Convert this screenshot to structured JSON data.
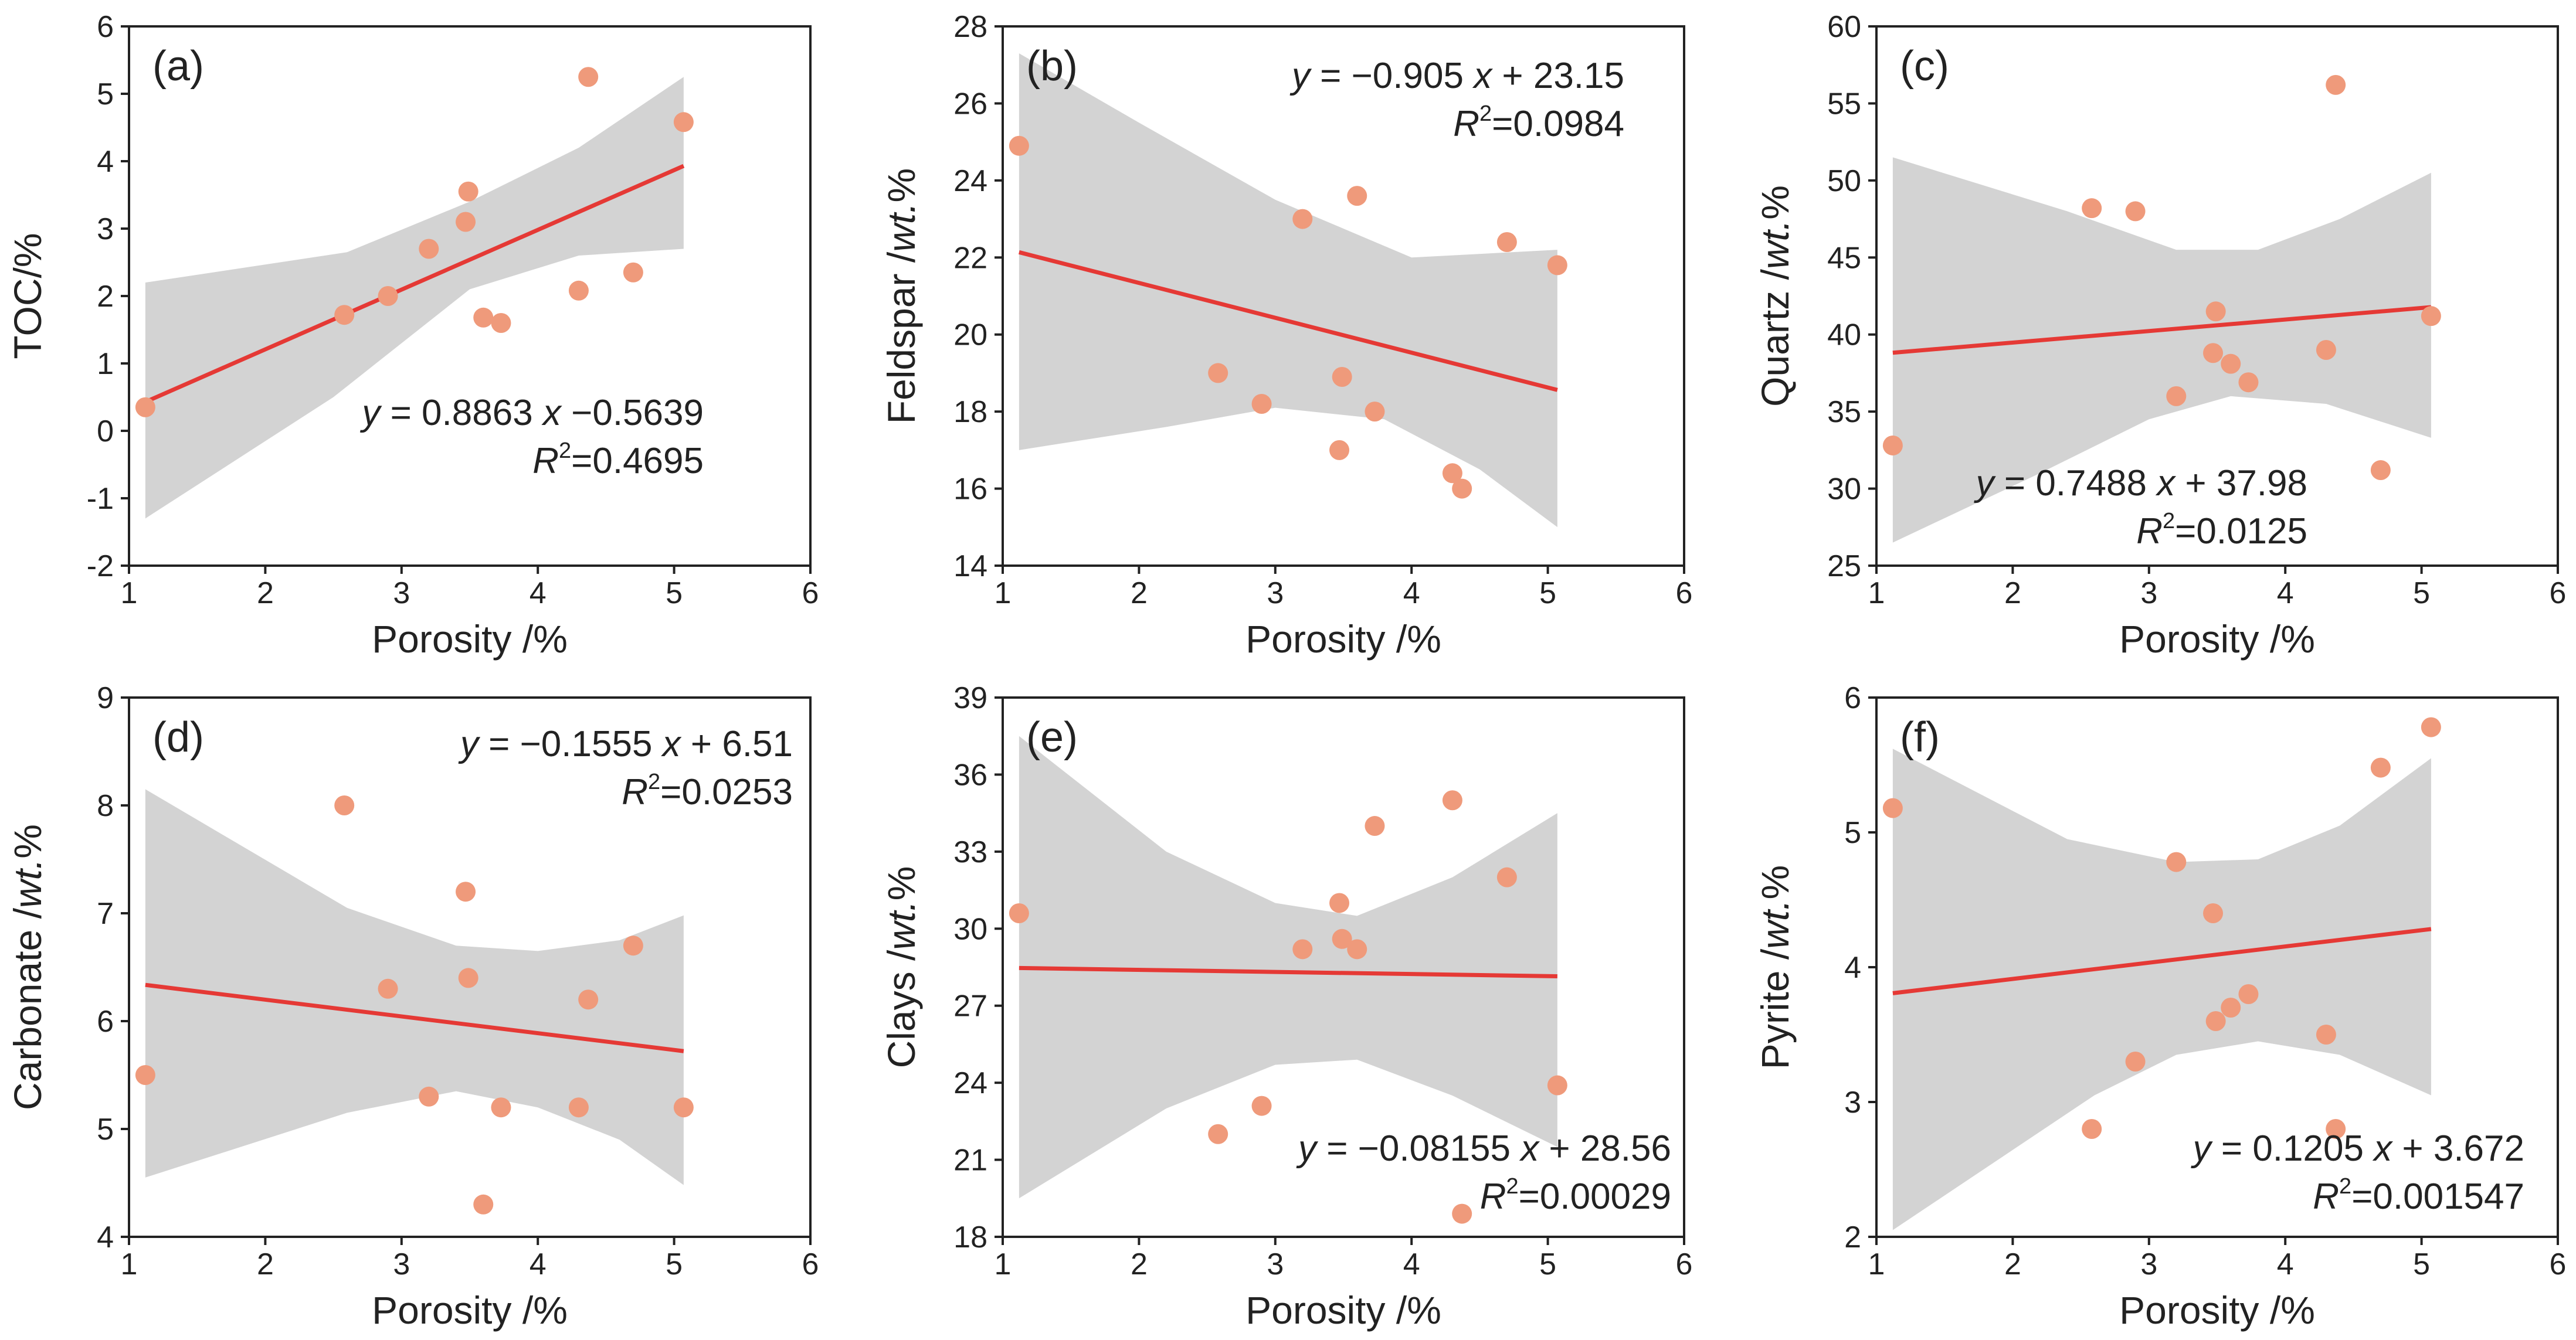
{
  "colors": {
    "point": "#ef9a7b",
    "fit_line": "#e53935",
    "confidence_band": "#d3d3d3",
    "axis": "#222222",
    "background": "#ffffff"
  },
  "chart_data": [
    {
      "type": "scatter",
      "panel_label": "(a)",
      "xlabel": "Porosity /%",
      "ylabel": "TOC/%",
      "xlim": [
        1,
        6
      ],
      "ylim": [
        -2,
        6
      ],
      "xticks": [
        1,
        2,
        3,
        4,
        5,
        6
      ],
      "yticks": [
        -2,
        -1,
        0,
        1,
        2,
        3,
        4,
        5,
        6
      ],
      "points": [
        [
          1.12,
          0.35
        ],
        [
          2.58,
          1.72
        ],
        [
          2.9,
          2.0
        ],
        [
          3.2,
          2.7
        ],
        [
          3.47,
          3.1
        ],
        [
          3.49,
          3.55
        ],
        [
          3.6,
          1.68
        ],
        [
          3.73,
          1.6
        ],
        [
          4.3,
          2.08
        ],
        [
          4.37,
          5.25
        ],
        [
          4.7,
          2.35
        ],
        [
          5.07,
          4.58
        ]
      ],
      "fit": {
        "slope": 0.8863,
        "intercept": -0.5639
      },
      "band_upper": [
        [
          1.12,
          2.2
        ],
        [
          2.6,
          2.65
        ],
        [
          3.5,
          3.4
        ],
        [
          4.3,
          4.2
        ],
        [
          5.07,
          5.25
        ]
      ],
      "band_lower": [
        [
          1.12,
          -1.3
        ],
        [
          2.5,
          0.5
        ],
        [
          3.5,
          2.1
        ],
        [
          4.3,
          2.6
        ],
        [
          5.07,
          2.7
        ]
      ],
      "equation": {
        "pre": "y",
        "mid": " = 0.8863 ",
        "var": "x",
        "post": " −0.5639"
      },
      "r_squared": {
        "symbol": "R",
        "sup": "2",
        "value": "=0.4695"
      }
    },
    {
      "type": "scatter",
      "panel_label": "(b)",
      "xlabel": "Porosity /%",
      "ylabel": "Feldspar /wt.%",
      "xlim": [
        1,
        6
      ],
      "ylim": [
        14,
        28
      ],
      "xticks": [
        1,
        2,
        3,
        4,
        5,
        6
      ],
      "yticks": [
        14,
        16,
        18,
        20,
        22,
        24,
        26,
        28
      ],
      "points": [
        [
          1.12,
          24.9
        ],
        [
          2.58,
          19.0
        ],
        [
          2.9,
          18.2
        ],
        [
          3.2,
          23.0
        ],
        [
          3.47,
          17.0
        ],
        [
          3.49,
          18.9
        ],
        [
          3.6,
          23.6
        ],
        [
          3.73,
          18.0
        ],
        [
          4.3,
          16.4
        ],
        [
          4.37,
          16.0
        ],
        [
          4.7,
          22.4
        ],
        [
          5.07,
          21.8
        ]
      ],
      "fit": {
        "slope": -0.905,
        "intercept": 23.15
      },
      "band_upper": [
        [
          1.12,
          27.3
        ],
        [
          2.0,
          25.5
        ],
        [
          3.0,
          23.5
        ],
        [
          4.0,
          22.0
        ],
        [
          5.07,
          22.2
        ]
      ],
      "band_lower": [
        [
          1.12,
          17.0
        ],
        [
          2.2,
          17.6
        ],
        [
          3.0,
          18.1
        ],
        [
          3.8,
          17.8
        ],
        [
          4.5,
          16.5
        ],
        [
          5.07,
          15.0
        ]
      ],
      "equation": {
        "pre": "y",
        "mid": " = −0.905 ",
        "var": "x",
        "post": " + 23.15"
      },
      "r_squared": {
        "symbol": "R",
        "sup": "2",
        "value": "=0.0984"
      }
    },
    {
      "type": "scatter",
      "panel_label": "(c)",
      "xlabel": "Porosity /%",
      "ylabel": "Quartz /wt.%",
      "xlim": [
        1,
        6
      ],
      "ylim": [
        25,
        60
      ],
      "xticks": [
        1,
        2,
        3,
        4,
        5,
        6
      ],
      "yticks": [
        25,
        30,
        35,
        40,
        45,
        50,
        55,
        60
      ],
      "points": [
        [
          1.12,
          32.8
        ],
        [
          2.58,
          48.2
        ],
        [
          2.9,
          48.0
        ],
        [
          3.2,
          36.0
        ],
        [
          3.47,
          38.8
        ],
        [
          3.49,
          41.5
        ],
        [
          3.6,
          38.1
        ],
        [
          3.73,
          36.9
        ],
        [
          4.3,
          39.0
        ],
        [
          4.37,
          56.2
        ],
        [
          4.7,
          31.2
        ],
        [
          5.07,
          41.2
        ]
      ],
      "fit": {
        "slope": 0.7488,
        "intercept": 37.98
      },
      "band_upper": [
        [
          1.12,
          51.5
        ],
        [
          2.4,
          48.0
        ],
        [
          3.2,
          45.5
        ],
        [
          3.8,
          45.5
        ],
        [
          4.4,
          47.5
        ],
        [
          5.07,
          50.5
        ]
      ],
      "band_lower": [
        [
          1.12,
          26.5
        ],
        [
          2.2,
          31.0
        ],
        [
          3.0,
          34.5
        ],
        [
          3.6,
          36.0
        ],
        [
          4.3,
          35.5
        ],
        [
          5.07,
          33.3
        ]
      ],
      "equation": {
        "pre": "y",
        "mid": " = 0.7488 ",
        "var": "x",
        "post": " + 37.98"
      },
      "r_squared": {
        "symbol": "R",
        "sup": "2",
        "value": "=0.0125"
      }
    },
    {
      "type": "scatter",
      "panel_label": "(d)",
      "xlabel": "Porosity /%",
      "ylabel": "Carbonate /wt.%",
      "xlim": [
        1,
        6
      ],
      "ylim": [
        4,
        9
      ],
      "xticks": [
        1,
        2,
        3,
        4,
        5,
        6
      ],
      "yticks": [
        4,
        5,
        6,
        7,
        8,
        9
      ],
      "points": [
        [
          1.12,
          5.5
        ],
        [
          2.58,
          8.0
        ],
        [
          2.9,
          6.3
        ],
        [
          3.2,
          5.3
        ],
        [
          3.47,
          7.2
        ],
        [
          3.49,
          6.4
        ],
        [
          3.6,
          4.3
        ],
        [
          3.73,
          5.2
        ],
        [
          4.3,
          5.2
        ],
        [
          4.37,
          6.2
        ],
        [
          4.7,
          6.7
        ],
        [
          5.07,
          5.2
        ]
      ],
      "fit": {
        "slope": -0.1555,
        "intercept": 6.51
      },
      "band_upper": [
        [
          1.12,
          8.15
        ],
        [
          2.6,
          7.05
        ],
        [
          3.4,
          6.7
        ],
        [
          4.0,
          6.65
        ],
        [
          4.6,
          6.75
        ],
        [
          5.07,
          6.98
        ]
      ],
      "band_lower": [
        [
          1.12,
          4.55
        ],
        [
          2.6,
          5.15
        ],
        [
          3.4,
          5.35
        ],
        [
          4.0,
          5.2
        ],
        [
          4.6,
          4.9
        ],
        [
          5.07,
          4.48
        ]
      ],
      "equation": {
        "pre": "y",
        "mid": " = −0.1555 ",
        "var": "x",
        "post": " + 6.51"
      },
      "r_squared": {
        "symbol": "R",
        "sup": "2",
        "value": "=0.0253"
      }
    },
    {
      "type": "scatter",
      "panel_label": "(e)",
      "xlabel": "Porosity /%",
      "ylabel": "Clays /wt.%",
      "xlim": [
        1,
        6
      ],
      "ylim": [
        18,
        39
      ],
      "xticks": [
        1,
        2,
        3,
        4,
        5,
        6
      ],
      "yticks": [
        18,
        21,
        24,
        27,
        30,
        33,
        36,
        39
      ],
      "points": [
        [
          1.12,
          30.6
        ],
        [
          2.58,
          22.0
        ],
        [
          2.9,
          23.1
        ],
        [
          3.2,
          29.2
        ],
        [
          3.47,
          31.0
        ],
        [
          3.49,
          29.6
        ],
        [
          3.6,
          29.2
        ],
        [
          3.73,
          34.0
        ],
        [
          4.3,
          35.0
        ],
        [
          4.37,
          18.9
        ],
        [
          4.7,
          32.0
        ],
        [
          5.07,
          23.9
        ]
      ],
      "fit": {
        "slope": -0.08155,
        "intercept": 28.56
      },
      "band_upper": [
        [
          1.12,
          37.5
        ],
        [
          2.2,
          33.0
        ],
        [
          3.0,
          31.0
        ],
        [
          3.6,
          30.5
        ],
        [
          4.3,
          32.0
        ],
        [
          5.07,
          34.5
        ]
      ],
      "band_lower": [
        [
          1.12,
          19.5
        ],
        [
          2.2,
          23.0
        ],
        [
          3.0,
          24.7
        ],
        [
          3.6,
          24.9
        ],
        [
          4.3,
          23.5
        ],
        [
          5.07,
          21.5
        ]
      ],
      "equation": {
        "pre": "y",
        "mid": " = −0.08155 ",
        "var": "x",
        "post": " + 28.56"
      },
      "r_squared": {
        "symbol": "R",
        "sup": "2",
        "value": "=0.00029"
      }
    },
    {
      "type": "scatter",
      "panel_label": "(f)",
      "xlabel": "Porosity /%",
      "ylabel": "Pyrite /wt.%",
      "xlim": [
        1,
        6
      ],
      "ylim": [
        2,
        6
      ],
      "xticks": [
        1,
        2,
        3,
        4,
        5,
        6
      ],
      "yticks": [
        2,
        3,
        4,
        5,
        6
      ],
      "points": [
        [
          1.12,
          5.18
        ],
        [
          2.58,
          2.8
        ],
        [
          2.9,
          3.3
        ],
        [
          3.2,
          4.78
        ],
        [
          3.47,
          4.4
        ],
        [
          3.49,
          3.6
        ],
        [
          3.6,
          3.7
        ],
        [
          3.73,
          3.8
        ],
        [
          4.3,
          3.5
        ],
        [
          4.37,
          2.8
        ],
        [
          4.7,
          5.48
        ],
        [
          5.07,
          5.78
        ]
      ],
      "fit": {
        "slope": 0.1205,
        "intercept": 3.672
      },
      "band_upper": [
        [
          1.12,
          5.62
        ],
        [
          2.4,
          4.95
        ],
        [
          3.2,
          4.78
        ],
        [
          3.8,
          4.8
        ],
        [
          4.4,
          5.05
        ],
        [
          5.07,
          5.55
        ]
      ],
      "band_lower": [
        [
          1.12,
          2.05
        ],
        [
          2.6,
          3.05
        ],
        [
          3.2,
          3.35
        ],
        [
          3.8,
          3.45
        ],
        [
          4.4,
          3.35
        ],
        [
          5.07,
          3.05
        ]
      ],
      "equation": {
        "pre": "y",
        "mid": " = 0.1205 ",
        "var": "x",
        "post": " + 3.672"
      },
      "r_squared": {
        "symbol": "R",
        "sup": "2",
        "value": "=0.001547"
      }
    }
  ]
}
